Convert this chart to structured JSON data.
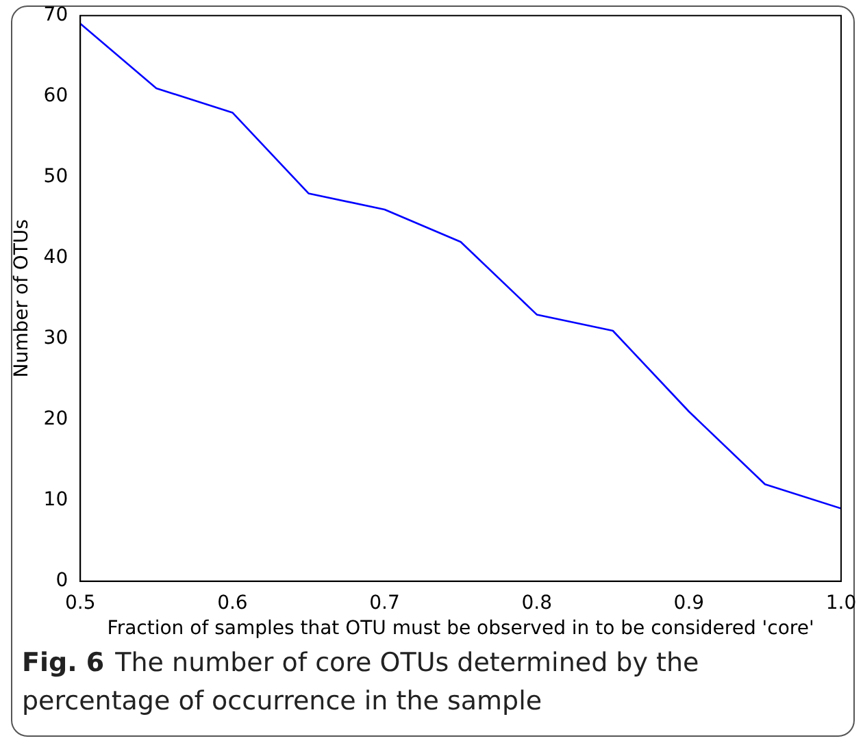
{
  "chart_data": {
    "type": "line",
    "xlabel": "Fraction of samples that OTU must be observed in to be considered 'core'",
    "ylabel": "Number of OTUs",
    "x": [
      0.5,
      0.55,
      0.6,
      0.65,
      0.7,
      0.75,
      0.8,
      0.85,
      0.9,
      0.95,
      1.0
    ],
    "series": [
      {
        "color": "#0000ff",
        "values": [
          69,
          61,
          58,
          48,
          46,
          42,
          33,
          31,
          21,
          12,
          9
        ]
      }
    ],
    "xlim": [
      0.5,
      1.0
    ],
    "xticks": [
      0.5,
      0.6,
      0.7,
      0.8,
      0.9,
      {
        "value": 1.0,
        "label": "1.0"
      }
    ],
    "ylim": [
      0,
      70
    ],
    "yticks": [
      0,
      10,
      20,
      30,
      40,
      50,
      60,
      70
    ],
    "grid": false,
    "legend": false,
    "marker": "none",
    "line_style": "solid",
    "annotations": [
      "Fig. 6",
      "The number of core OTUs determined by the percentage of occurrence in the sample"
    ]
  }
}
